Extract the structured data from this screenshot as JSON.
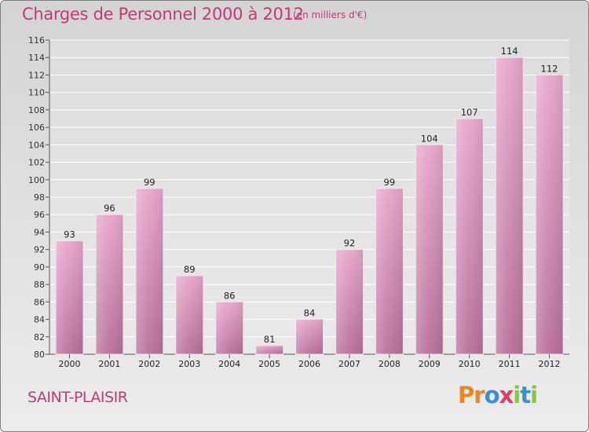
{
  "title": "Charges de Personnel 2000 à 2012",
  "unit_note": "(en milliers d'€)",
  "commune": "SAINT-PLAISIR",
  "logo": {
    "letters": [
      "P",
      "r",
      "o",
      "x",
      "i",
      "t",
      "i"
    ],
    "colors": [
      "#e8872a",
      "#e8872a",
      "#3a8fd6",
      "#e23a6a",
      "#8cc43c",
      "#3a8fd6",
      "#8cc43c"
    ]
  },
  "colors": {
    "accent": "#c03a78",
    "bar_top": "#e8a6cb",
    "bar_bottom": "#b8709a"
  },
  "chart_data": {
    "type": "bar",
    "title": "Charges de Personnel 2000 à 2012",
    "subtitle": "(en milliers d'€)",
    "categories": [
      "2000",
      "2001",
      "2002",
      "2003",
      "2004",
      "2005",
      "2006",
      "2007",
      "2008",
      "2009",
      "2010",
      "2011",
      "2012"
    ],
    "values": [
      93,
      96,
      99,
      89,
      86,
      81,
      84,
      92,
      99,
      104,
      107,
      114,
      112
    ],
    "ylim": [
      80,
      116
    ],
    "yticks": [
      80,
      82,
      84,
      86,
      88,
      90,
      92,
      94,
      96,
      98,
      100,
      102,
      104,
      106,
      108,
      110,
      112,
      114,
      116
    ],
    "grid": true,
    "legend": "none"
  }
}
